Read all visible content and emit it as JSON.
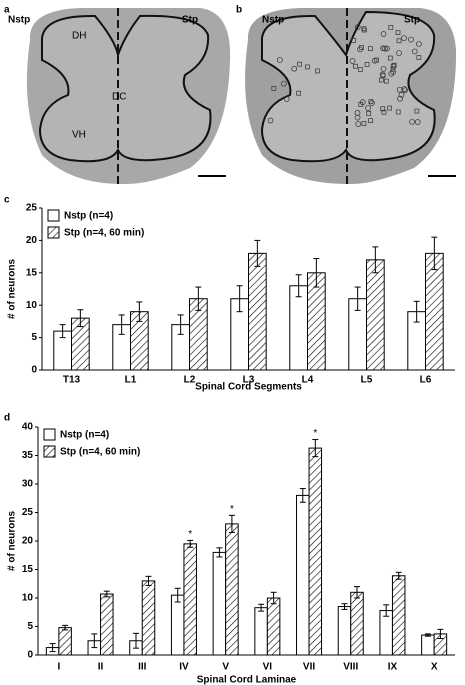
{
  "panels": [
    {
      "letter": "a",
      "left": "Nstp",
      "right": "Stp",
      "dh": "DH",
      "dc": "DC",
      "vh": "VH"
    },
    {
      "letter": "b",
      "left": "Nstp",
      "right": "Stp"
    }
  ],
  "chart_data": [
    {
      "type": "bar",
      "letter": "c",
      "ylabel": "# of neurons",
      "xlabel": "Spinal Cord Segments",
      "categories": [
        "T13",
        "L1",
        "L2",
        "L3",
        "L4",
        "L5",
        "L6"
      ],
      "series": [
        {
          "name": "Nstp (n=4)",
          "color": "#ffffff",
          "pattern": "none",
          "values": [
            6,
            7,
            7,
            11,
            13,
            11,
            9
          ],
          "errors": [
            1,
            1.5,
            1.5,
            2,
            1.7,
            1.8,
            1.6
          ]
        },
        {
          "name": "Stp (n=4, 60 min)",
          "color": "#ffffff",
          "pattern": "hatch",
          "values": [
            8,
            9,
            11,
            18,
            15,
            17,
            18
          ],
          "errors": [
            1.3,
            1.5,
            1.8,
            2,
            2.2,
            2,
            2.5
          ]
        }
      ],
      "ylim": [
        0,
        25
      ],
      "yticks": [
        0,
        5,
        10,
        15,
        20,
        25
      ],
      "legend": "upper left",
      "grid": false,
      "annotations": []
    },
    {
      "type": "bar",
      "letter": "d",
      "ylabel": "# of neurons",
      "xlabel": "Spinal Cord Laminae",
      "categories": [
        "I",
        "II",
        "III",
        "IV",
        "V",
        "VI",
        "VII",
        "VIII",
        "IX",
        "X"
      ],
      "series": [
        {
          "name": "Nstp (n=4)",
          "color": "#ffffff",
          "pattern": "none",
          "values": [
            1.3,
            2.5,
            2.5,
            10.5,
            18,
            8.3,
            28,
            8.5,
            7.8,
            3.5
          ],
          "errors": [
            0.7,
            1.2,
            1.3,
            1.2,
            0.8,
            0.6,
            1.2,
            0.5,
            1,
            0.2
          ]
        },
        {
          "name": "Stp (n=4, 60 min)",
          "color": "#ffffff",
          "pattern": "hatch",
          "values": [
            4.8,
            10.7,
            13,
            19.5,
            23,
            10,
            36.3,
            11,
            13.9,
            3.7
          ],
          "errors": [
            0.4,
            0.5,
            0.8,
            0.6,
            1.5,
            1,
            1.5,
            1,
            0.6,
            0.8
          ]
        }
      ],
      "ylim": [
        0,
        40
      ],
      "yticks": [
        0,
        5,
        10,
        15,
        20,
        25,
        30,
        35,
        40
      ],
      "legend": "upper left",
      "grid": false,
      "annotations": [
        {
          "x": "IV",
          "text": "*"
        },
        {
          "x": "V",
          "text": "*"
        },
        {
          "x": "VII",
          "text": "*"
        }
      ]
    }
  ]
}
